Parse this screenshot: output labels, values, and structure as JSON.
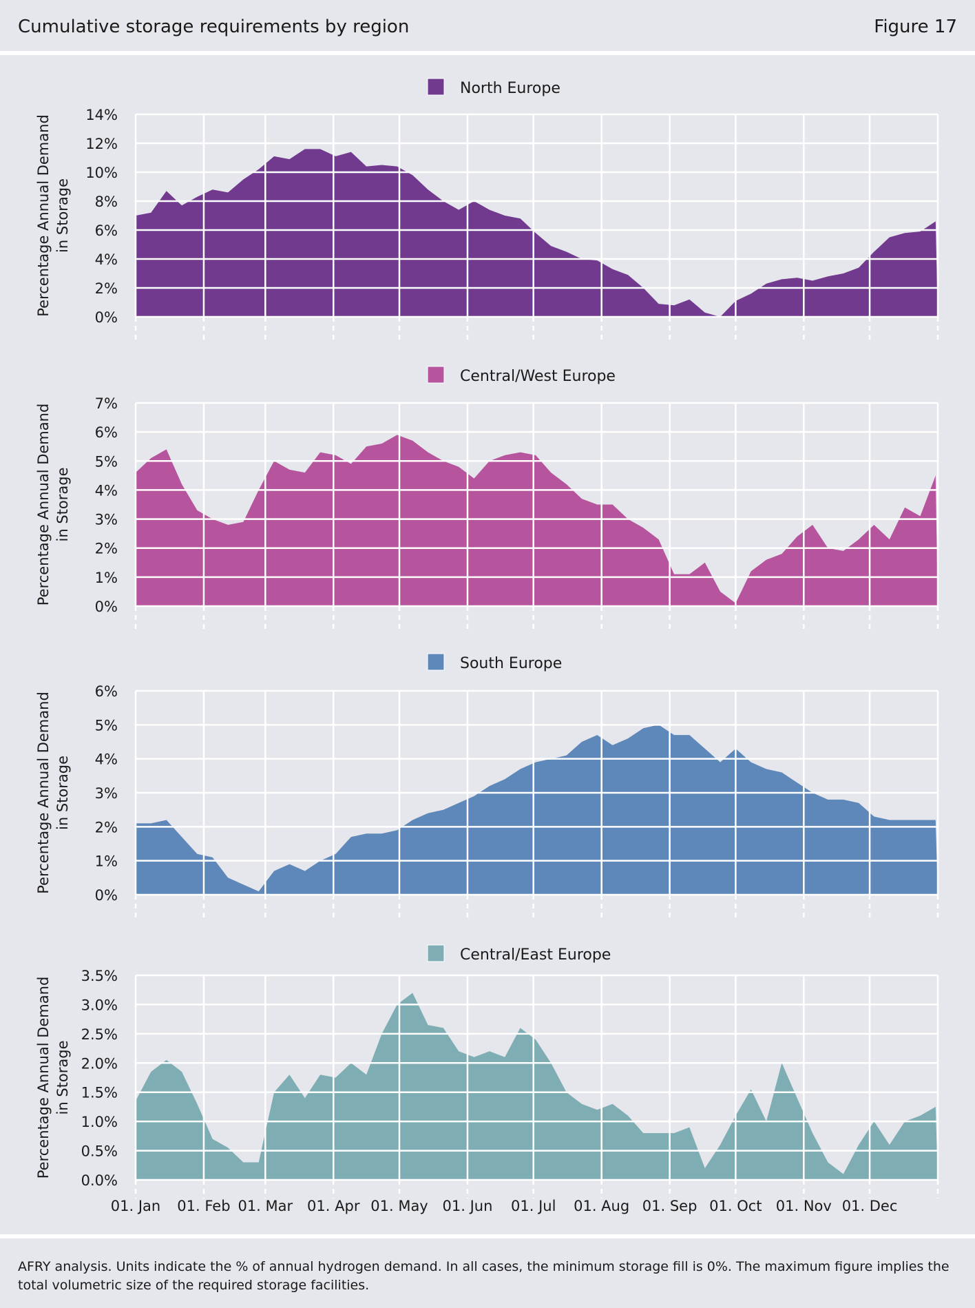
{
  "header": {
    "title": "Cumulative storage requirements by region",
    "figure": "Figure 17"
  },
  "footer": {
    "note": "AFRY analysis. Units indicate the % of annual hydrogen demand.  In all cases, the minimum storage fill is 0%.  The maximum figure implies the total volumetric size of the required storage facilities."
  },
  "chart_data": [
    {
      "type": "area",
      "title": "North Europe",
      "legend": "North Europe",
      "color": "#713a8f",
      "ylabel": [
        "Percentage Annual Demand",
        "in Storage"
      ],
      "ylim": [
        0,
        14
      ],
      "yticks": [
        0,
        2,
        4,
        6,
        8,
        10,
        12,
        14
      ],
      "ytick_labels": [
        "0%",
        "2%",
        "4%",
        "6%",
        "8%",
        "10%",
        "12%",
        "14%"
      ],
      "x": [
        "01. Jan",
        "08. Jan",
        "15. Jan",
        "22. Jan",
        "29. Jan",
        "05. Feb",
        "12. Feb",
        "19. Feb",
        "26. Feb",
        "05. Mar",
        "12. Mar",
        "19. Mar",
        "26. Mar",
        "02. Apr",
        "09. Apr",
        "16. Apr",
        "23. Apr",
        "30. Apr",
        "07. May",
        "14. May",
        "21. May",
        "28. May",
        "04. Jun",
        "11. Jun",
        "18. Jun",
        "25. Jun",
        "02. Jul",
        "09. Jul",
        "16. Jul",
        "23. Jul",
        "30. Jul",
        "06. Aug",
        "13. Aug",
        "20. Aug",
        "27. Aug",
        "03. Sep",
        "10. Sep",
        "17. Sep",
        "24. Sep",
        "01. Oct",
        "08. Oct",
        "15. Oct",
        "22. Oct",
        "29. Oct",
        "05. Nov",
        "12. Nov",
        "19. Nov",
        "26. Nov",
        "03. Dec",
        "10. Dec",
        "17. Dec",
        "24. Dec",
        "31. Dec"
      ],
      "values": [
        7.0,
        7.2,
        8.7,
        7.7,
        8.3,
        8.8,
        8.6,
        9.5,
        10.2,
        11.1,
        10.9,
        11.6,
        11.6,
        11.1,
        11.4,
        10.4,
        10.5,
        10.4,
        9.8,
        8.8,
        8.0,
        7.4,
        8.0,
        7.4,
        7.0,
        6.8,
        5.8,
        4.9,
        4.5,
        4.0,
        3.9,
        3.3,
        2.9,
        2.0,
        0.9,
        0.8,
        1.2,
        0.3,
        0.0,
        1.1,
        1.6,
        2.3,
        2.6,
        2.7,
        2.5,
        2.8,
        3.0,
        3.4,
        4.5,
        5.5,
        5.8,
        5.9,
        6.6
      ]
    },
    {
      "type": "area",
      "title": "Central/West Europe",
      "legend": "Central/West Europe",
      "color": "#b7549e",
      "ylabel": [
        "Percentage Annual Demand",
        "in Storage"
      ],
      "ylim": [
        0,
        7
      ],
      "yticks": [
        0,
        1,
        2,
        3,
        4,
        5,
        6,
        7
      ],
      "ytick_labels": [
        "0%",
        "1%",
        "2%",
        "3%",
        "4%",
        "5%",
        "6%",
        "7%"
      ],
      "x": [
        "01. Jan",
        "08. Jan",
        "15. Jan",
        "22. Jan",
        "29. Jan",
        "05. Feb",
        "12. Feb",
        "19. Feb",
        "26. Feb",
        "05. Mar",
        "12. Mar",
        "19. Mar",
        "26. Mar",
        "02. Apr",
        "09. Apr",
        "16. Apr",
        "23. Apr",
        "30. Apr",
        "07. May",
        "14. May",
        "21. May",
        "28. May",
        "04. Jun",
        "11. Jun",
        "18. Jun",
        "25. Jun",
        "02. Jul",
        "09. Jul",
        "16. Jul",
        "23. Jul",
        "30. Jul",
        "06. Aug",
        "13. Aug",
        "20. Aug",
        "27. Aug",
        "03. Sep",
        "10. Sep",
        "17. Sep",
        "24. Sep",
        "01. Oct",
        "08. Oct",
        "15. Oct",
        "22. Oct",
        "29. Oct",
        "05. Nov",
        "12. Nov",
        "19. Nov",
        "26. Nov",
        "03. Dec",
        "10. Dec",
        "17. Dec",
        "24. Dec",
        "31. Dec"
      ],
      "values": [
        4.6,
        5.1,
        5.4,
        4.2,
        3.3,
        3.0,
        2.8,
        2.9,
        4.0,
        5.0,
        4.7,
        4.6,
        5.3,
        5.2,
        4.9,
        5.5,
        5.6,
        5.9,
        5.7,
        5.3,
        5.0,
        4.8,
        4.4,
        5.0,
        5.2,
        5.3,
        5.2,
        4.6,
        4.2,
        3.7,
        3.5,
        3.5,
        3.0,
        2.7,
        2.3,
        1.1,
        1.1,
        1.5,
        0.5,
        0.1,
        1.2,
        1.6,
        1.8,
        2.4,
        2.8,
        2.0,
        1.9,
        2.3,
        2.8,
        2.3,
        3.4,
        3.1,
        4.5
      ]
    },
    {
      "type": "area",
      "title": "South Europe",
      "legend": "South Europe",
      "color": "#5e88b9",
      "ylabel": [
        "Percentage Annual Demand",
        "in Storage"
      ],
      "ylim": [
        0,
        6
      ],
      "yticks": [
        0,
        1,
        2,
        3,
        4,
        5,
        6
      ],
      "ytick_labels": [
        "0%",
        "1%",
        "2%",
        "3%",
        "4%",
        "5%",
        "6%"
      ],
      "x": [
        "01. Jan",
        "08. Jan",
        "15. Jan",
        "22. Jan",
        "29. Jan",
        "05. Feb",
        "12. Feb",
        "19. Feb",
        "26. Feb",
        "05. Mar",
        "12. Mar",
        "19. Mar",
        "26. Mar",
        "02. Apr",
        "09. Apr",
        "16. Apr",
        "23. Apr",
        "30. Apr",
        "07. May",
        "14. May",
        "21. May",
        "28. May",
        "04. Jun",
        "11. Jun",
        "18. Jun",
        "25. Jun",
        "02. Jul",
        "09. Jul",
        "16. Jul",
        "23. Jul",
        "30. Jul",
        "06. Aug",
        "13. Aug",
        "20. Aug",
        "27. Aug",
        "03. Sep",
        "10. Sep",
        "17. Sep",
        "24. Sep",
        "01. Oct",
        "08. Oct",
        "15. Oct",
        "22. Oct",
        "29. Oct",
        "05. Nov",
        "12. Nov",
        "19. Nov",
        "26. Nov",
        "03. Dec",
        "10. Dec",
        "17. Dec",
        "24. Dec",
        "31. Dec"
      ],
      "values": [
        2.1,
        2.1,
        2.2,
        1.7,
        1.2,
        1.1,
        0.5,
        0.3,
        0.1,
        0.7,
        0.9,
        0.7,
        1.0,
        1.2,
        1.7,
        1.8,
        1.8,
        1.9,
        2.2,
        2.4,
        2.5,
        2.7,
        2.9,
        3.2,
        3.4,
        3.7,
        3.9,
        4.0,
        4.1,
        4.5,
        4.7,
        4.4,
        4.6,
        4.9,
        5.0,
        4.7,
        4.7,
        4.3,
        3.9,
        4.3,
        3.9,
        3.7,
        3.6,
        3.3,
        3.0,
        2.8,
        2.8,
        2.7,
        2.3,
        2.2,
        2.2,
        2.2,
        2.2
      ]
    },
    {
      "type": "area",
      "title": "Central/East Europe",
      "legend": "Central/East Europe",
      "color": "#7eadb3",
      "ylabel": [
        "Percentage Annual Demand",
        "in Storage"
      ],
      "ylim": [
        0,
        3.5
      ],
      "yticks": [
        0,
        0.5,
        1.0,
        1.5,
        2.0,
        2.5,
        3.0,
        3.5
      ],
      "ytick_labels": [
        "0.0%",
        "0.5%",
        "1.0%",
        "1.5%",
        "2.0%",
        "2.5%",
        "3.0%",
        "3.5%"
      ],
      "xtick_labels": [
        "01. Jan",
        "01. Feb",
        "01. Mar",
        "01. Apr",
        "01. May",
        "01. Jun",
        "01. Jul",
        "01. Aug",
        "01. Sep",
        "01. Oct",
        "01. Nov",
        "01. Dec"
      ],
      "x": [
        "01. Jan",
        "08. Jan",
        "15. Jan",
        "22. Jan",
        "29. Jan",
        "05. Feb",
        "12. Feb",
        "19. Feb",
        "26. Feb",
        "05. Mar",
        "12. Mar",
        "19. Mar",
        "26. Mar",
        "02. Apr",
        "09. Apr",
        "16. Apr",
        "23. Apr",
        "30. Apr",
        "07. May",
        "14. May",
        "21. May",
        "28. May",
        "04. Jun",
        "11. Jun",
        "18. Jun",
        "25. Jun",
        "02. Jul",
        "09. Jul",
        "16. Jul",
        "23. Jul",
        "30. Jul",
        "06. Aug",
        "13. Aug",
        "20. Aug",
        "27. Aug",
        "03. Sep",
        "10. Sep",
        "17. Sep",
        "24. Sep",
        "01. Oct",
        "08. Oct",
        "15. Oct",
        "22. Oct",
        "29. Oct",
        "05. Nov",
        "12. Nov",
        "19. Nov",
        "26. Nov",
        "03. Dec",
        "10. Dec",
        "17. Dec",
        "24. Dec",
        "31. Dec"
      ],
      "values": [
        1.35,
        1.85,
        2.05,
        1.85,
        1.3,
        0.7,
        0.55,
        0.3,
        0.3,
        1.5,
        1.8,
        1.4,
        1.8,
        1.75,
        2.0,
        1.8,
        2.5,
        3.0,
        3.2,
        2.65,
        2.6,
        2.2,
        2.1,
        2.2,
        2.1,
        2.6,
        2.4,
        2.0,
        1.5,
        1.3,
        1.2,
        1.3,
        1.1,
        0.8,
        0.8,
        0.8,
        0.9,
        0.2,
        0.6,
        1.1,
        1.55,
        1.0,
        2.0,
        1.4,
        0.8,
        0.3,
        0.1,
        0.6,
        1.0,
        0.6,
        1.0,
        1.1,
        1.25
      ]
    }
  ]
}
